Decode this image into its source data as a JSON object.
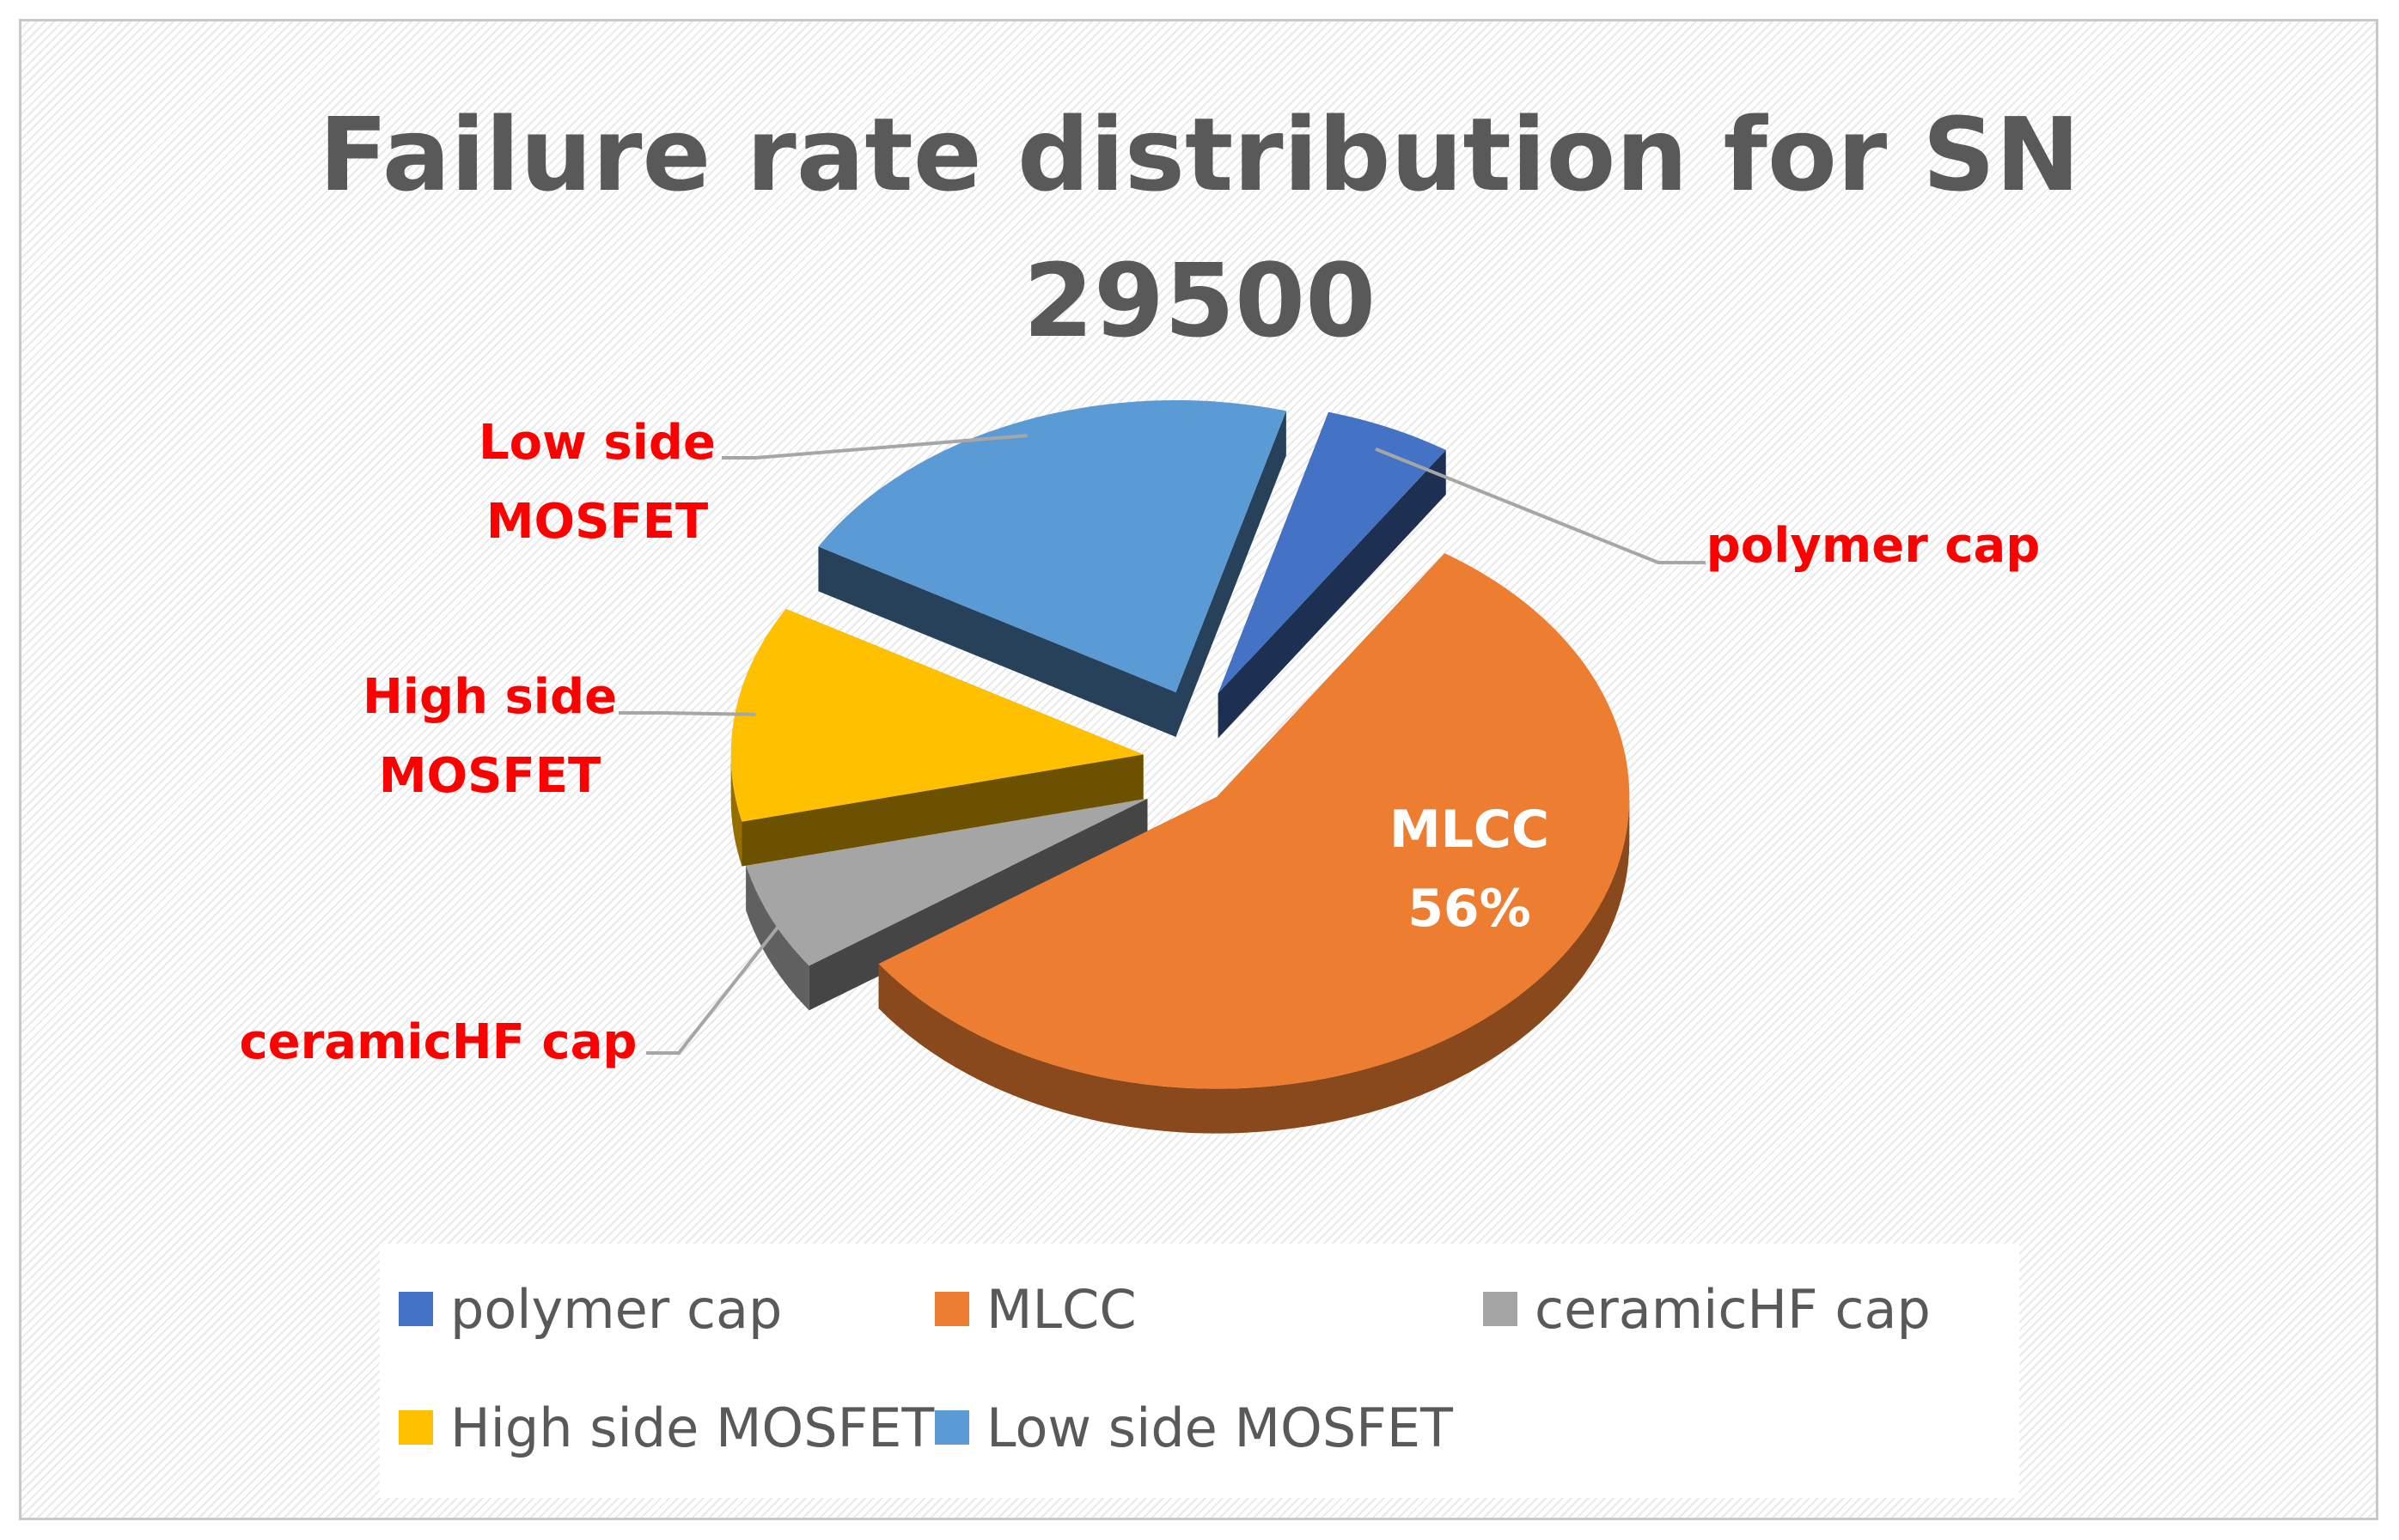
{
  "chart_data": {
    "type": "pie",
    "title": "Failure rate distribution for SN\n29500",
    "categories": [
      "polymer cap",
      "MLCC",
      "ceramicHF cap",
      "High side MOSFET",
      "Low side MOSFET"
    ],
    "values": [
      5,
      56,
      6,
      12,
      21
    ],
    "unit": "%",
    "colors": [
      "#4472c4",
      "#ed7d31",
      "#a5a5a5",
      "#ffc000",
      "#5b9bd5"
    ],
    "labels": [
      {
        "category": "polymer cap",
        "text": "polymer cap"
      },
      {
        "category": "MLCC",
        "text": "MLCC\n56%"
      },
      {
        "category": "ceramicHF cap",
        "text": "ceramicHF cap"
      },
      {
        "category": "High side MOSFET",
        "text": "High side\nMOSFET"
      },
      {
        "category": "Low side MOSFET",
        "text": "Low side\nMOSFET"
      }
    ],
    "exploded": true,
    "style": "3d",
    "legend_position": "bottom",
    "label_color": "#ff0000"
  }
}
